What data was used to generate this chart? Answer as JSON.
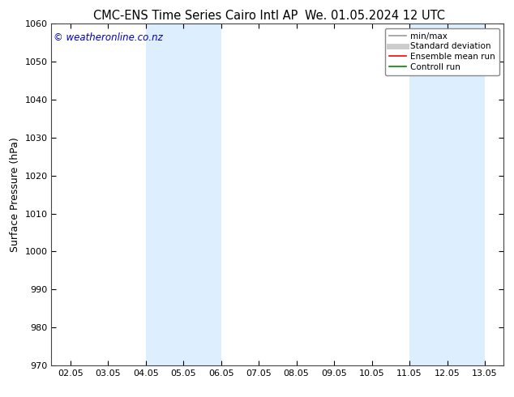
{
  "title_left": "CMC-ENS Time Series Cairo Intl AP",
  "title_right": "We. 01.05.2024 12 UTC",
  "ylabel": "Surface Pressure (hPa)",
  "ylim": [
    970,
    1060
  ],
  "yticks": [
    970,
    980,
    990,
    1000,
    1010,
    1020,
    1030,
    1040,
    1050,
    1060
  ],
  "xtick_labels": [
    "02.05",
    "03.05",
    "04.05",
    "05.05",
    "06.05",
    "07.05",
    "08.05",
    "09.05",
    "10.05",
    "11.05",
    "12.05",
    "13.05"
  ],
  "xtick_positions": [
    0,
    1,
    2,
    3,
    4,
    5,
    6,
    7,
    8,
    9,
    10,
    11
  ],
  "xlim": [
    -0.5,
    11.5
  ],
  "shaded_bands": [
    {
      "xmin": 2,
      "xmax": 4,
      "color": "#ddeeff"
    },
    {
      "xmin": 9,
      "xmax": 11,
      "color": "#ddeeff"
    }
  ],
  "watermark_text": "© weatheronline.co.nz",
  "watermark_color": "#0000bb",
  "background_color": "#ffffff",
  "legend_items": [
    {
      "label": "min/max",
      "color": "#999999",
      "lw": 1.2,
      "style": "solid"
    },
    {
      "label": "Standard deviation",
      "color": "#cccccc",
      "lw": 5,
      "style": "solid"
    },
    {
      "label": "Ensemble mean run",
      "color": "#ff0000",
      "lw": 1.2,
      "style": "solid"
    },
    {
      "label": "Controll run",
      "color": "#008800",
      "lw": 1.2,
      "style": "solid"
    }
  ],
  "title_fontsize": 10.5,
  "ylabel_fontsize": 9,
  "tick_fontsize": 8,
  "legend_fontsize": 7.5,
  "watermark_fontsize": 8.5
}
